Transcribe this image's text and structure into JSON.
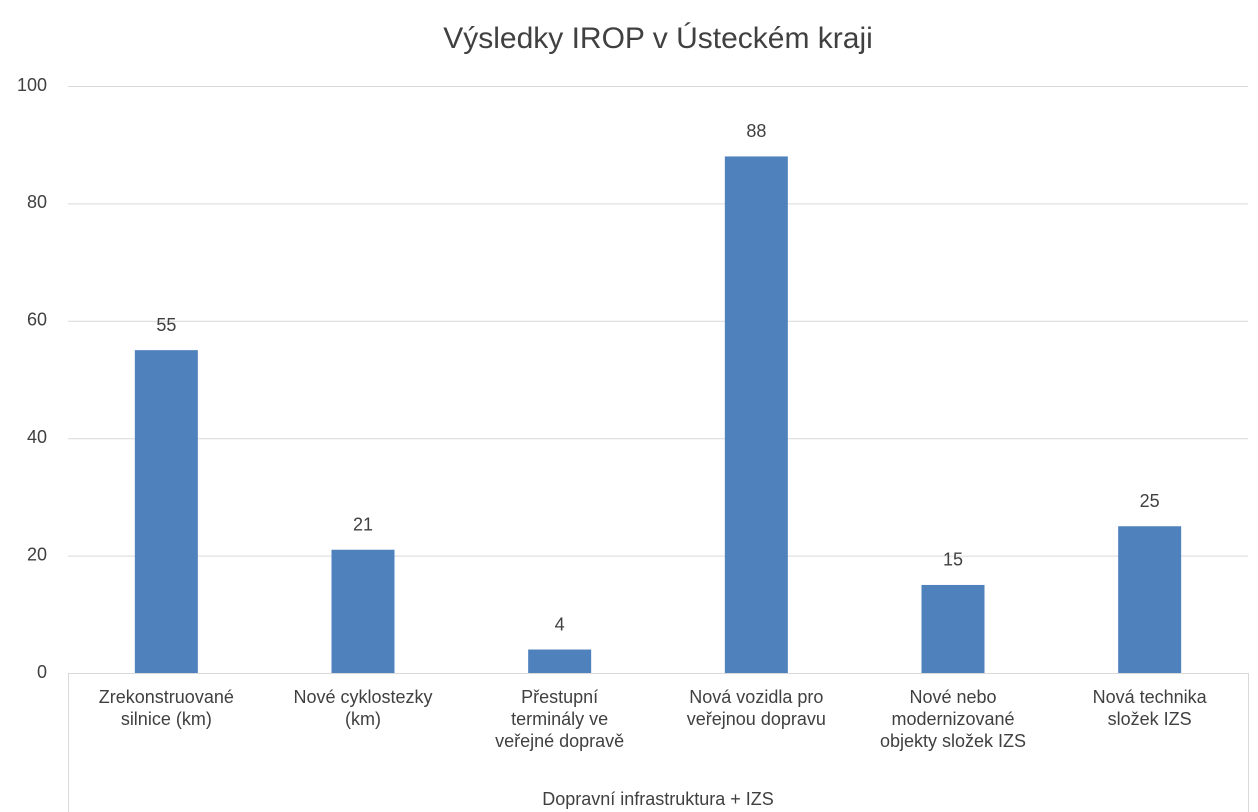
{
  "chart_data": {
    "type": "bar",
    "title": "Výsledky IROP v Ústeckém kraji",
    "categories": [
      "Zrekonstruované\nsilnice (km)",
      "Nové cyklostezky\n(km)",
      "Přestupní\nterminály ve\nveřejné dopravě",
      "Nová vozidla pro\nveřejnou dopravu",
      "Nové nebo\nmodernizované\nobjekty složek IZS",
      "Nová technika\nsložek IZS"
    ],
    "group_label": "Dopravní infrastruktura + IZS",
    "values": [
      55,
      21,
      4,
      88,
      15,
      25
    ],
    "color": "#4f81bd",
    "ylim": [
      0,
      100
    ],
    "yticks": [
      0,
      20,
      40,
      60,
      80,
      100
    ],
    "grid": true,
    "data_labels": true
  }
}
